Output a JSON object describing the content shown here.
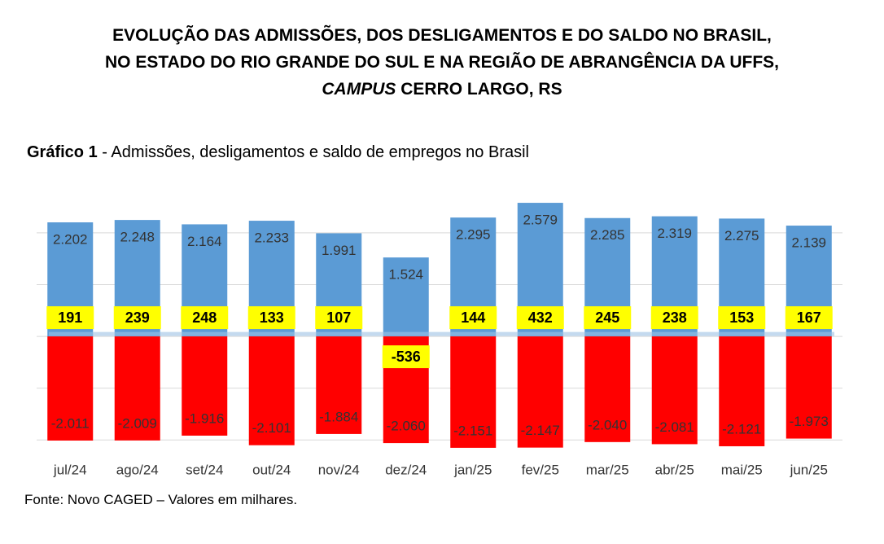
{
  "chart_data": {
    "type": "bar",
    "title": {
      "line1": "EVOLUÇÃO DAS ADMISSÕES, DOS DESLIGAMENTOS E DO SALDO NO BRASIL,",
      "line2": "NO ESTADO DO RIO GRANDE DO SUL E NA REGIÃO DE ABRANGÊNCIA DA UFFS,",
      "line3_italic": "CAMPUS",
      "line3": "CERRO LARGO, RS"
    },
    "subtitle": {
      "bold": "Gráfico 1",
      "text": "- Admissões, desligamentos e saldo de empregos no Brasil"
    },
    "source": "Fonte: Novo CAGED – Valores em milhares.",
    "categories": [
      "jul/24",
      "ago/24",
      "set/24",
      "out/24",
      "nov/24",
      "dez/24",
      "jan/25",
      "fev/25",
      "mar/25",
      "abr/25",
      "mai/25",
      "jun/25"
    ],
    "series": [
      {
        "color": "#5b9bd5",
        "values": [
          2202,
          2248,
          2164,
          2233,
          1991,
          1524,
          2295,
          2579,
          2285,
          2319,
          2275,
          2139
        ],
        "value_labels": [
          "2.202",
          "2.248",
          "2.164",
          "2.233",
          "1.991",
          "1.524",
          "2.295",
          "2.579",
          "2.285",
          "2.319",
          "2.275",
          "2.139"
        ]
      },
      {
        "color": "#ff0000",
        "values": [
          -2011,
          -2009,
          -1916,
          -2101,
          -1884,
          -2060,
          -2151,
          -2147,
          -2040,
          -2081,
          -2121,
          -1973
        ],
        "value_labels": [
          "-2.011",
          "-2.009",
          "-1.916",
          "-2.101",
          "-1.884",
          "-2.060",
          "-2.151",
          "-2.147",
          "-2.040",
          "-2.081",
          "-2.121",
          "-1.973"
        ]
      },
      {
        "color": "#ffff00",
        "values": [
          191,
          239,
          248,
          133,
          107,
          -536,
          144,
          432,
          245,
          238,
          153,
          167
        ]
      }
    ],
    "ylim": [
      -2200,
      2800
    ],
    "yticks": [
      -2000,
      -1000,
      0,
      1000,
      2000
    ],
    "grid": true
  }
}
